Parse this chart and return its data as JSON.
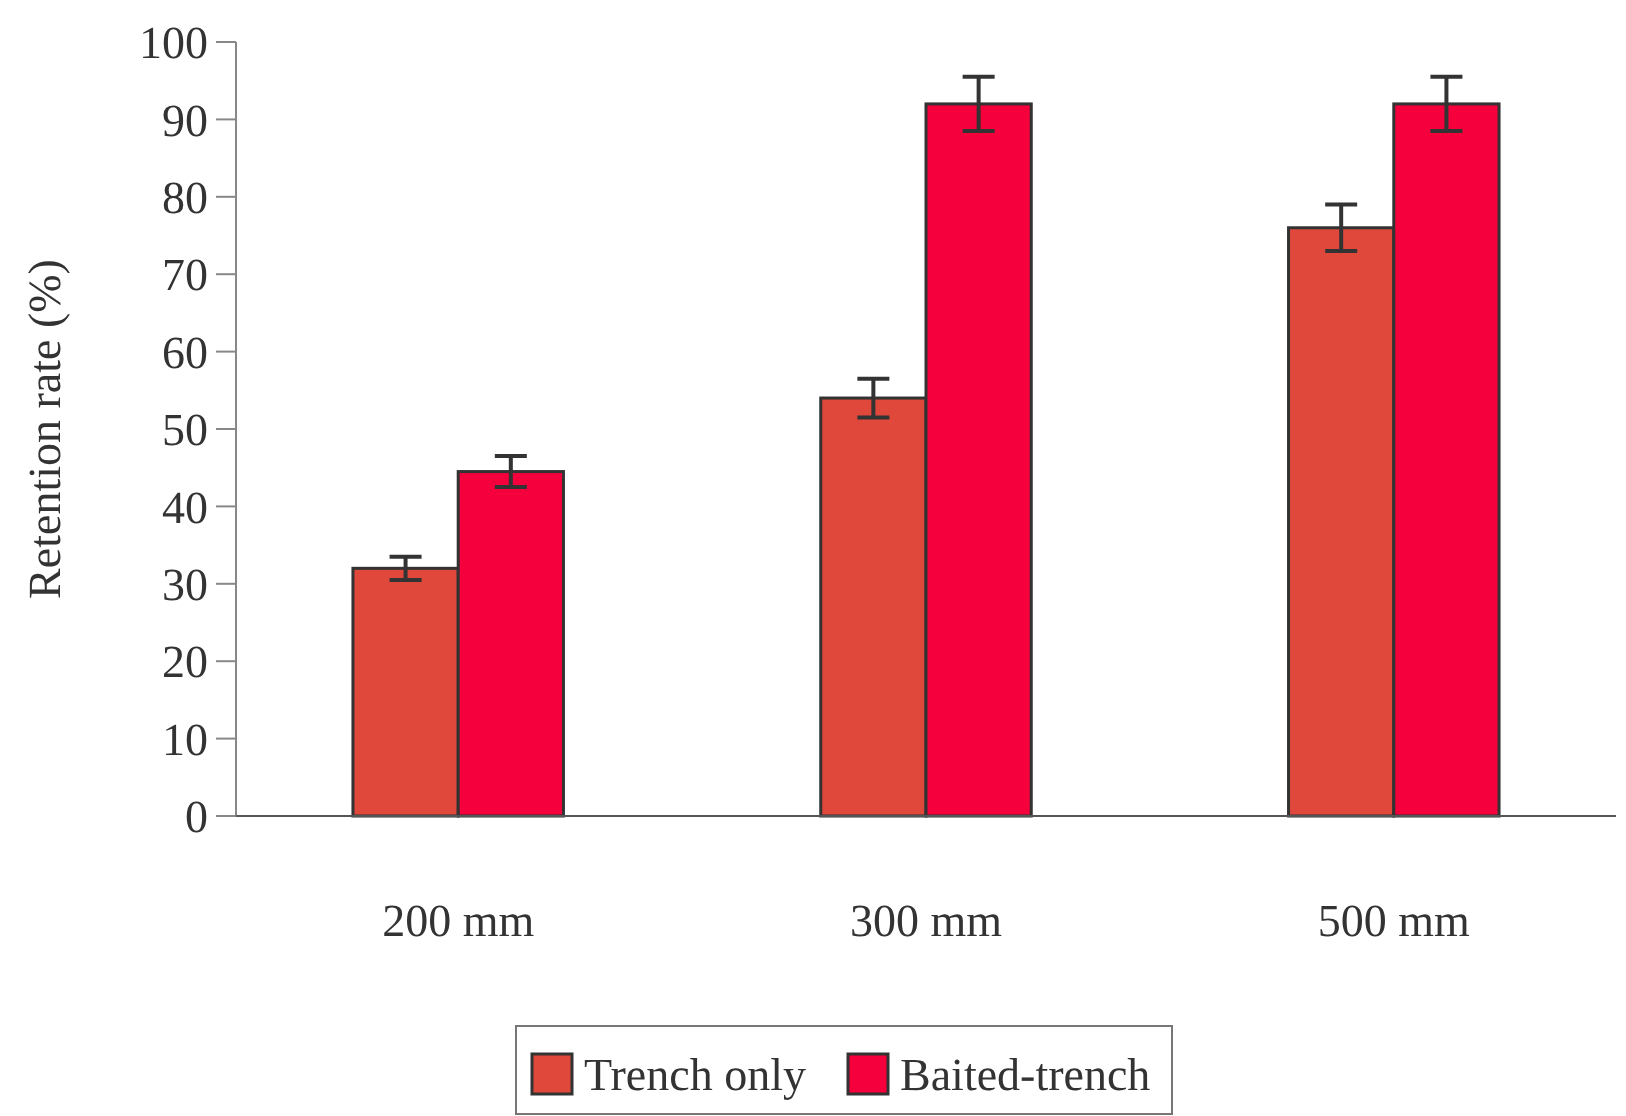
{
  "chart_data": {
    "type": "bar",
    "ylabel": "Retention rate (%)",
    "categories": [
      "200 mm",
      "300 mm",
      "500 mm"
    ],
    "series": [
      {
        "name": "Trench only",
        "color": "#e0483c",
        "values": [
          32,
          54,
          76
        ],
        "errors": [
          1.5,
          2.5,
          3
        ]
      },
      {
        "name": "Baited-trench",
        "color": "#f5003c",
        "values": [
          44.5,
          92,
          92
        ],
        "errors": [
          2,
          3.5,
          3.5
        ]
      }
    ],
    "ylim": [
      0,
      100
    ],
    "yticks": [
      0,
      10,
      20,
      30,
      40,
      50,
      60,
      70,
      80,
      90,
      100
    ],
    "grid": false,
    "legend": "bottom"
  }
}
